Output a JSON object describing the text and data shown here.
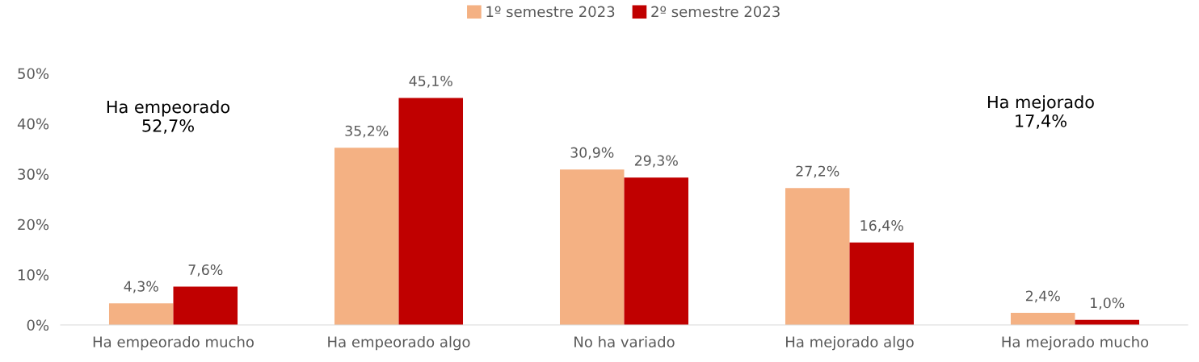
{
  "chart_data": {
    "type": "bar",
    "categories": [
      "Ha empeorado mucho",
      "Ha empeorado algo",
      "No ha variado",
      "Ha mejorado algo",
      "Ha mejorado mucho"
    ],
    "series": [
      {
        "name": "1º semestre 2023",
        "color": "#f4b183",
        "values": [
          4.3,
          35.2,
          30.9,
          27.2,
          2.4
        ],
        "value_labels": [
          "4,3%",
          "35,2%",
          "30,9%",
          "27,2%",
          "2,4%"
        ]
      },
      {
        "name": "2º semestre 2023",
        "color": "#c00000",
        "values": [
          7.6,
          45.1,
          29.3,
          16.4,
          1.0
        ],
        "value_labels": [
          "7,6%",
          "45,1%",
          "29,3%",
          "16,4%",
          "1,0%"
        ]
      }
    ],
    "ylim": [
      0,
      58
    ],
    "yticks": [
      {
        "value": 0,
        "label": "0%"
      },
      {
        "value": 10,
        "label": "10%"
      },
      {
        "value": 20,
        "label": "20%"
      },
      {
        "value": 30,
        "label": "30%"
      },
      {
        "value": 40,
        "label": "40%"
      },
      {
        "value": 50,
        "label": "50%"
      }
    ],
    "annotations": [
      "Ha empeorado\n52,7%",
      "Ha mejorado\n17,4%"
    ],
    "legend": "top",
    "grid": false
  }
}
